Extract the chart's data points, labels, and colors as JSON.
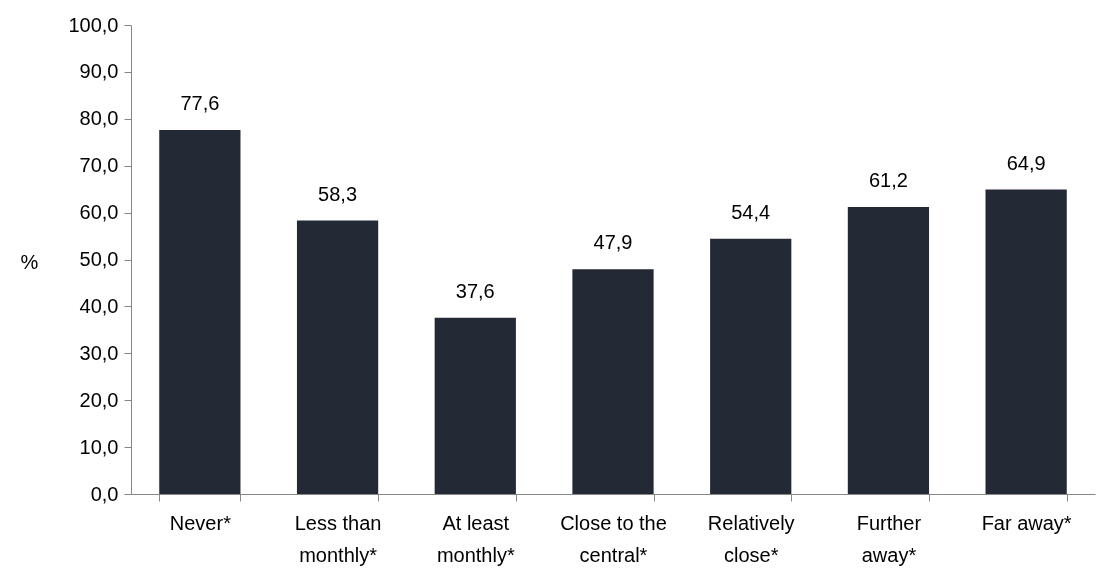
{
  "chart_data": {
    "type": "bar",
    "ylabel": "%",
    "categories": [
      "Never*",
      "Less than monthly*",
      "At least monthly*",
      "Close to the central*",
      "Relatively close*",
      "Further away*",
      "Far away*"
    ],
    "values": [
      77.6,
      58.3,
      37.6,
      47.9,
      54.4,
      61.2,
      64.9
    ],
    "value_labels": [
      "77,6",
      "58,3",
      "37,6",
      "47,9",
      "54,4",
      "61,2",
      "64,9"
    ],
    "color": "#232a35",
    "ylim": [
      0,
      100
    ],
    "yticks": [
      {
        "value": 0,
        "label": "0,0"
      },
      {
        "value": 10,
        "label": "10,0"
      },
      {
        "value": 20,
        "label": "20,0"
      },
      {
        "value": 30,
        "label": "30,0"
      },
      {
        "value": 40,
        "label": "40,0"
      },
      {
        "value": 50,
        "label": "50,0"
      },
      {
        "value": 60,
        "label": "60,0"
      },
      {
        "value": 70,
        "label": "70,0"
      },
      {
        "value": 80,
        "label": "80,0"
      },
      {
        "value": 90,
        "label": "90,0"
      },
      {
        "value": 100,
        "label": "100,0"
      }
    ]
  }
}
